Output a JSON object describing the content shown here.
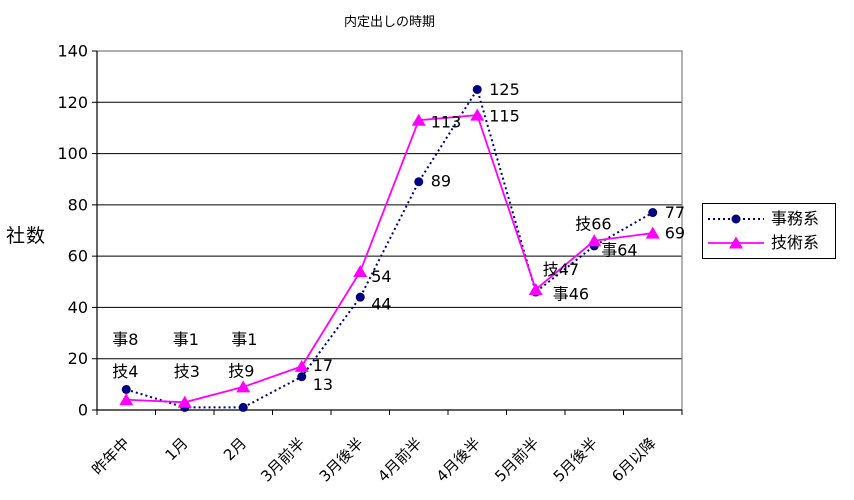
{
  "chart_data": {
    "type": "line",
    "title": "内定出しの時期",
    "ylabel": "社数",
    "categories": [
      "昨年中",
      "1月",
      "2月",
      "3月前半",
      "3月後半",
      "4月前半",
      "4月後半",
      "5月前半",
      "5月後半",
      "6月以降"
    ],
    "ylim": [
      0,
      140
    ],
    "yticks": [
      0,
      20,
      40,
      60,
      80,
      100,
      120,
      140
    ],
    "grid": true,
    "legend_position": "right",
    "colors": {
      "gridline": "#000000",
      "plot_border": "#808080",
      "axis": "#000000",
      "label_text": "#000000"
    },
    "series": [
      {
        "name": "事務系",
        "color": "#000080",
        "marker": "circle",
        "line_style": "dotted",
        "values": [
          8,
          1,
          1,
          13,
          44,
          89,
          125,
          46,
          64,
          77
        ],
        "point_labels": [
          {
            "text": "事8",
            "dx": -14,
            "dy": -50
          },
          {
            "text": "事1",
            "dx": -12,
            "dy": -68
          },
          {
            "text": "事1",
            "dx": -12,
            "dy": -68
          },
          {
            "text": "13",
            "dx": 11,
            "dy": 8
          },
          {
            "text": "44",
            "dx": 11,
            "dy": 7
          },
          {
            "text": "89",
            "dx": 12,
            "dy": -1
          },
          {
            "text": "125",
            "dx": 12,
            "dy": 0
          },
          {
            "text": "事46",
            "dx": 17,
            "dy": 2
          },
          {
            "text": "事64",
            "dx": 7,
            "dy": 4
          },
          {
            "text": "77",
            "dx": 12,
            "dy": 0
          }
        ]
      },
      {
        "name": "技術系",
        "color": "#FF00FF",
        "marker": "triangle",
        "line_style": "solid",
        "values": [
          4,
          3,
          9,
          17,
          54,
          113,
          115,
          47,
          66,
          69
        ],
        "point_labels": [
          {
            "text": "技4",
            "dx": -14,
            "dy": -28
          },
          {
            "text": "技3",
            "dx": -11,
            "dy": -31
          },
          {
            "text": "技9",
            "dx": -15,
            "dy": -16
          },
          {
            "text": "17",
            "dx": 11,
            "dy": -1
          },
          {
            "text": "54",
            "dx": 11,
            "dy": 5
          },
          {
            "text": "113",
            "dx": 12,
            "dy": 2
          },
          {
            "text": "115",
            "dx": 12,
            "dy": 1
          },
          {
            "text": "技47",
            "dx": 7,
            "dy": -20
          },
          {
            "text": "技66",
            "dx": -19,
            "dy": -17
          },
          {
            "text": "69",
            "dx": 12,
            "dy": 0
          }
        ]
      }
    ]
  }
}
